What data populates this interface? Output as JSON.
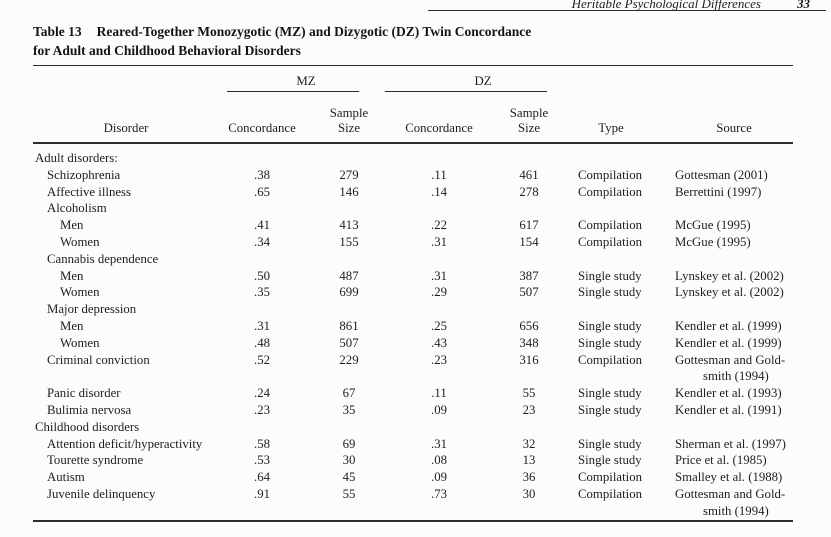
{
  "page": {
    "running_head": "Heritable Psychological Differences",
    "page_number": "33"
  },
  "caption": {
    "label": "Table 13",
    "line1": "Reared-Together Monozygotic (MZ) and Dizygotic (DZ) Twin Concordance",
    "line2": "for Adult and Childhood Behavioral Disorders"
  },
  "table": {
    "groups": {
      "mz": "MZ",
      "dz": "DZ"
    },
    "columns": {
      "disorder": "Disorder",
      "concordance": "Concordance",
      "sample_line1": "Sample",
      "sample_line2": "Size",
      "type": "Type",
      "source": "Source"
    },
    "rows": [
      {
        "label": "Adult disorders:",
        "indent": 0
      },
      {
        "label": "Schizophrenia",
        "indent": 1,
        "mz_c": ".38",
        "mz_n": "279",
        "dz_c": ".11",
        "dz_n": "461",
        "type": "Compilation",
        "source": "Gottesman (2001)"
      },
      {
        "label": "Affective illness",
        "indent": 1,
        "mz_c": ".65",
        "mz_n": "146",
        "dz_c": ".14",
        "dz_n": "278",
        "type": "Compilation",
        "source": "Berrettini (1997)"
      },
      {
        "label": "Alcoholism",
        "indent": 1
      },
      {
        "label": "Men",
        "indent": 2,
        "mz_c": ".41",
        "mz_n": "413",
        "dz_c": ".22",
        "dz_n": "617",
        "type": "Compilation",
        "source": "McGue (1995)"
      },
      {
        "label": "Women",
        "indent": 2,
        "mz_c": ".34",
        "mz_n": "155",
        "dz_c": ".31",
        "dz_n": "154",
        "type": "Compilation",
        "source": "McGue (1995)"
      },
      {
        "label": "Cannabis dependence",
        "indent": 1
      },
      {
        "label": "Men",
        "indent": 2,
        "mz_c": ".50",
        "mz_n": "487",
        "dz_c": ".31",
        "dz_n": "387",
        "type": "Single study",
        "source": "Lynskey et al. (2002)"
      },
      {
        "label": "Women",
        "indent": 2,
        "mz_c": ".35",
        "mz_n": "699",
        "dz_c": ".29",
        "dz_n": "507",
        "type": "Single study",
        "source": "Lynskey et al. (2002)"
      },
      {
        "label": "Major depression",
        "indent": 1
      },
      {
        "label": "Men",
        "indent": 2,
        "mz_c": ".31",
        "mz_n": "861",
        "dz_c": ".25",
        "dz_n": "656",
        "type": "Single study",
        "source": "Kendler et al. (1999)"
      },
      {
        "label": "Women",
        "indent": 2,
        "mz_c": ".48",
        "mz_n": "507",
        "dz_c": ".43",
        "dz_n": "348",
        "type": "Single study",
        "source": "Kendler et al. (1999)"
      },
      {
        "label": "Criminal conviction",
        "indent": 1,
        "mz_c": ".52",
        "mz_n": "229",
        "dz_c": ".23",
        "dz_n": "316",
        "type": "Compilation",
        "source": "Gottesman and Gold-",
        "source2": "smith (1994)"
      },
      {
        "label": "Panic disorder",
        "indent": 1,
        "mz_c": ".24",
        "mz_n": "67",
        "dz_c": ".11",
        "dz_n": "55",
        "type": "Single study",
        "source": "Kendler et al. (1993)"
      },
      {
        "label": "Bulimia nervosa",
        "indent": 1,
        "mz_c": ".23",
        "mz_n": "35",
        "dz_c": ".09",
        "dz_n": "23",
        "type": "Single study",
        "source": "Kendler et al. (1991)"
      },
      {
        "label": "Childhood disorders",
        "indent": 0
      },
      {
        "label": "Attention deficit/hyperactivity",
        "indent": 1,
        "mz_c": ".58",
        "mz_n": "69",
        "dz_c": ".31",
        "dz_n": "32",
        "type": "Single study",
        "source": "Sherman et al. (1997)"
      },
      {
        "label": "Tourette syndrome",
        "indent": 1,
        "mz_c": ".53",
        "mz_n": "30",
        "dz_c": ".08",
        "dz_n": "13",
        "type": "Single study",
        "source": "Price et al. (1985)"
      },
      {
        "label": "Autism",
        "indent": 1,
        "mz_c": ".64",
        "mz_n": "45",
        "dz_c": ".09",
        "dz_n": "36",
        "type": "Compilation",
        "source": "Smalley et al. (1988)"
      },
      {
        "label": "Juvenile delinquency",
        "indent": 1,
        "mz_c": ".91",
        "mz_n": "55",
        "dz_c": ".73",
        "dz_n": "30",
        "type": "Compilation",
        "source": "Gottesman and Gold-",
        "source2": "smith (1994)"
      }
    ]
  },
  "colors": {
    "background": "#fcfcfa",
    "text": "#1e1e1e",
    "rule": "#2a2a2a"
  }
}
